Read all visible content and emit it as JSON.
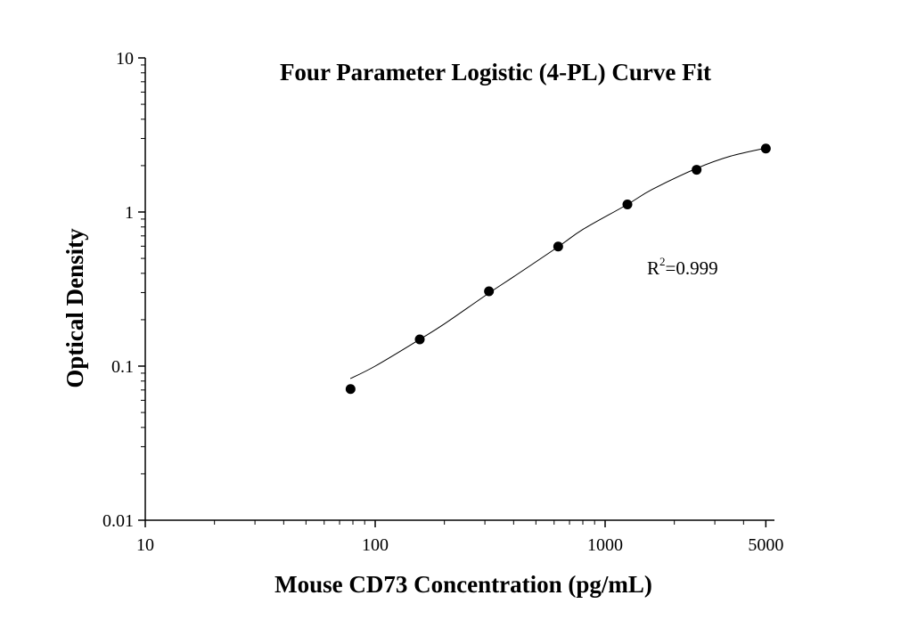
{
  "chart_data": {
    "type": "scatter",
    "title": "Four Parameter Logistic (4-PL) Curve Fit",
    "xlabel": "Mouse CD73 Concentration (pg/mL)",
    "ylabel": "Optical Density",
    "xscale": "log",
    "yscale": "log",
    "xlim": [
      10,
      6000
    ],
    "ylim": [
      0.01,
      10
    ],
    "x_ticks": [
      {
        "value": 10,
        "label": "10"
      },
      {
        "value": 100,
        "label": "100"
      },
      {
        "value": 1000,
        "label": "1000"
      },
      {
        "value": 5000,
        "label": "5000"
      }
    ],
    "y_ticks": [
      {
        "value": 0.01,
        "label": "0.01"
      },
      {
        "value": 0.1,
        "label": "0.1"
      },
      {
        "value": 1,
        "label": "1"
      },
      {
        "value": 10,
        "label": "10"
      }
    ],
    "grid": false,
    "series": [
      {
        "kind": "points",
        "color": "#000000",
        "x": [
          78.125,
          156.25,
          312.5,
          625,
          1250,
          2500,
          5000
        ],
        "y": [
          0.071,
          0.149,
          0.306,
          0.597,
          1.12,
          1.88,
          2.58
        ]
      },
      {
        "kind": "fit-curve",
        "color": "#000000",
        "x": [
          78,
          100,
          156.25,
          200,
          312.5,
          400,
          625,
          800,
          1250,
          1600,
          2500,
          3500,
          5000
        ],
        "y": [
          0.083,
          0.1,
          0.149,
          0.188,
          0.298,
          0.38,
          0.595,
          0.77,
          1.12,
          1.4,
          1.92,
          2.3,
          2.6
        ]
      }
    ],
    "annotation": {
      "base": "R",
      "sup": "2",
      "rest": "=0.999"
    }
  }
}
